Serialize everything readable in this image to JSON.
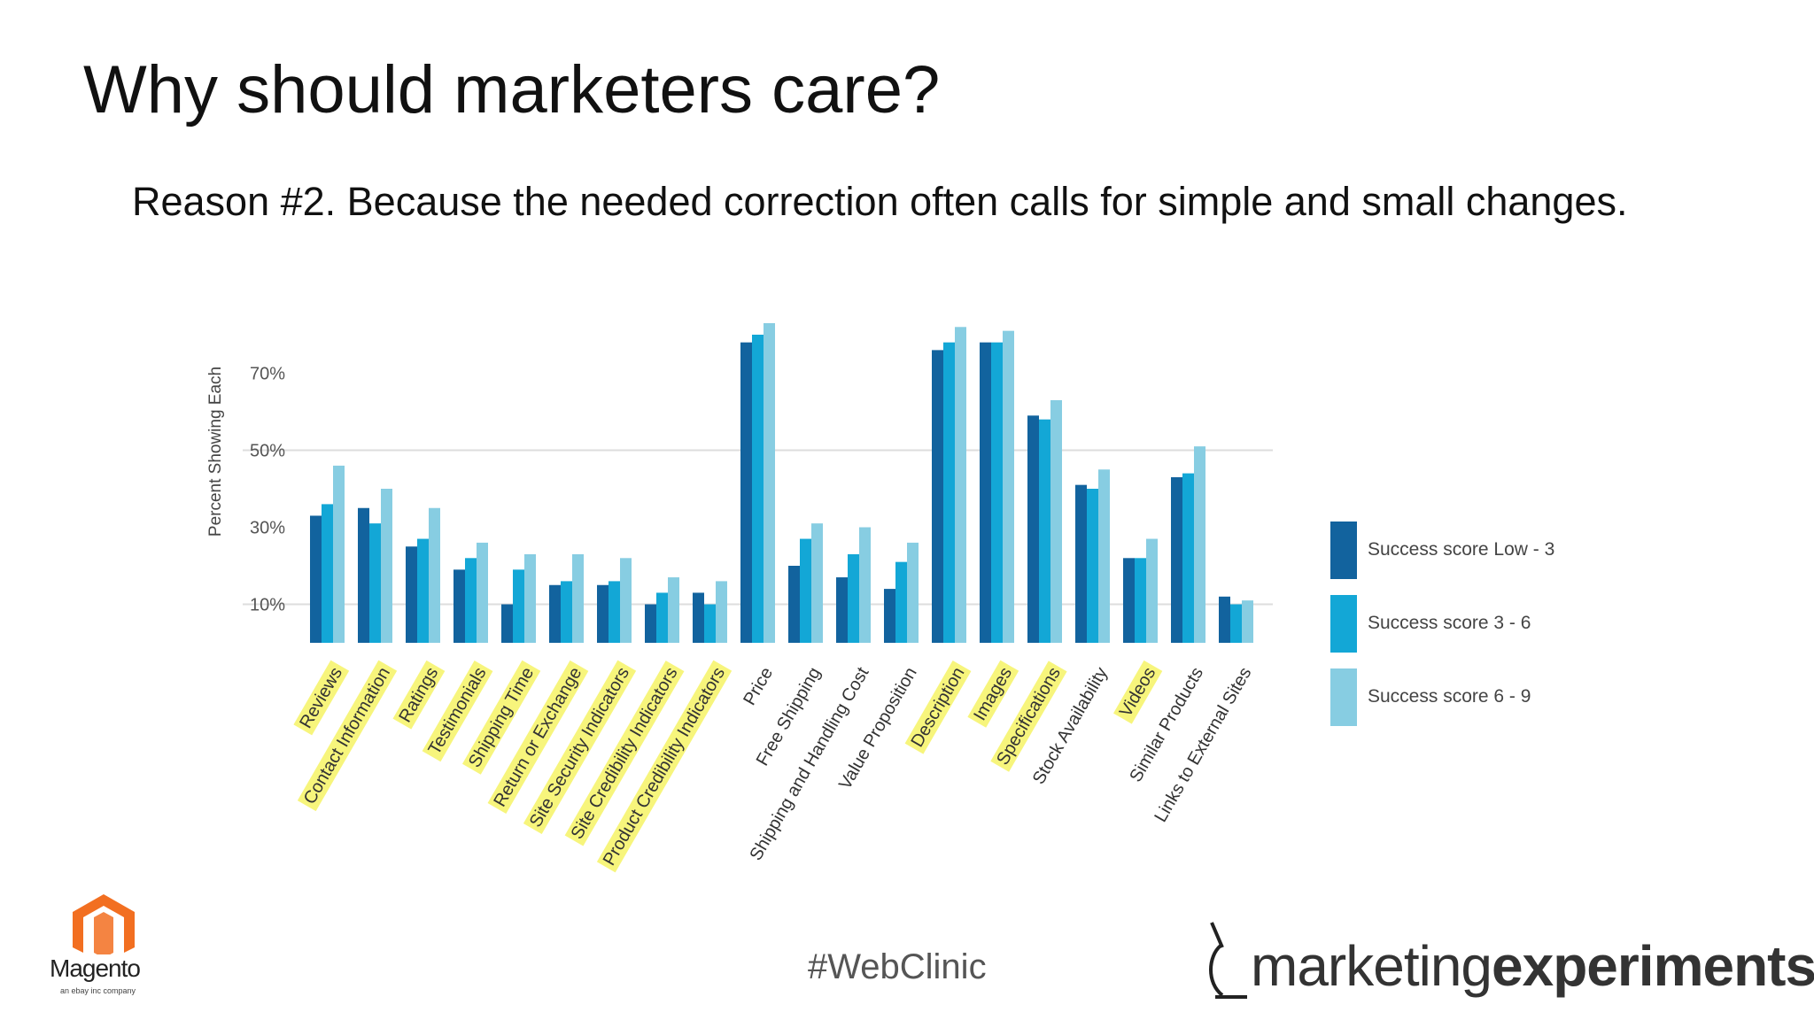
{
  "slide": {
    "title": "Why should marketers care?",
    "subtitle": "Reason #2. Because the needed correction often calls for simple and small changes.",
    "hashtag": "#WebClinic",
    "logo_left": {
      "name": "Magento",
      "tagline": "an ebay inc company",
      "color": "#f26f21"
    },
    "logo_right": {
      "part1": "marketing",
      "part2": "experiments"
    }
  },
  "chart_data": {
    "type": "bar",
    "title": "",
    "xlabel": "",
    "ylabel": "Percent Showing Each",
    "ylim": [
      0,
      85
    ],
    "yticks": [
      10,
      30,
      50,
      70
    ],
    "ytick_labels": [
      "10%",
      "30%",
      "50%",
      "70%"
    ],
    "grid": true,
    "legend_position": "right",
    "categories": [
      "Reviews",
      "Contact Information",
      "Ratings",
      "Testimonials",
      "Shipping Time",
      "Return or Exchange",
      "Site Security Indicators",
      "Site Credibility Indicators",
      "Product Credibility Indicators",
      "Price",
      "Free Shipping",
      "Shipping and Handling Cost",
      "Value Proposition",
      "Description",
      "Images",
      "Specifications",
      "Stock Availability",
      "Videos",
      "Similar Products",
      "Links to External Sites"
    ],
    "highlighted": [
      true,
      true,
      true,
      true,
      true,
      true,
      true,
      true,
      true,
      false,
      false,
      false,
      false,
      true,
      true,
      true,
      false,
      true,
      false,
      false
    ],
    "highlight_color": "#f7f57c",
    "series": [
      {
        "name": "Success score Low - 3",
        "color": "#12639e",
        "values": [
          33,
          35,
          25,
          19,
          10,
          15,
          15,
          10,
          13,
          78,
          20,
          17,
          14,
          76,
          78,
          59,
          41,
          22,
          43,
          12
        ]
      },
      {
        "name": "Success score 3 - 6",
        "color": "#13a7d6",
        "values": [
          36,
          31,
          27,
          22,
          19,
          16,
          16,
          13,
          10,
          80,
          27,
          23,
          21,
          78,
          78,
          58,
          40,
          22,
          44,
          10
        ]
      },
      {
        "name": "Success score 6 - 9",
        "color": "#87cde2",
        "values": [
          46,
          40,
          35,
          26,
          23,
          23,
          22,
          17,
          16,
          83,
          31,
          30,
          26,
          82,
          81,
          63,
          45,
          27,
          51,
          11
        ]
      }
    ]
  }
}
